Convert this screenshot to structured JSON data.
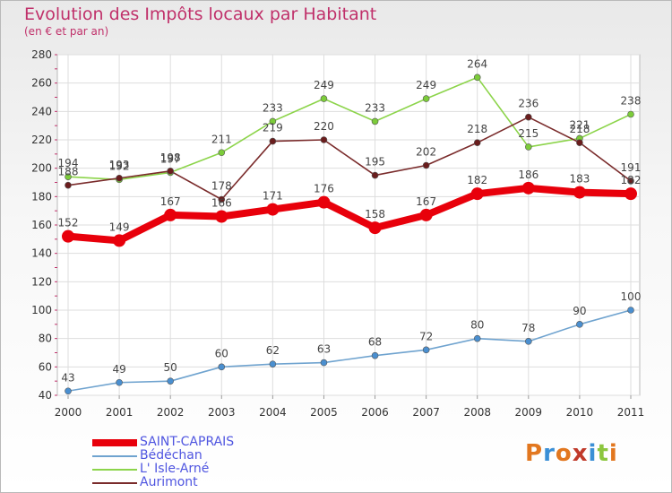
{
  "header": {
    "title": "Evolution des Impôts locaux par Habitant",
    "subtitle": "(en € et par an)"
  },
  "logo": {
    "text": "Proxiti",
    "colors": [
      "#e2771f",
      "#3a8fd6",
      "#e2771f",
      "#c03a2b",
      "#3a8fd6",
      "#8cc63f",
      "#e2771f"
    ]
  },
  "chart_data": {
    "type": "line",
    "x": [
      "2000",
      "2001",
      "2002",
      "2003",
      "2004",
      "2005",
      "2006",
      "2007",
      "2008",
      "2009",
      "2010",
      "2011"
    ],
    "ylim": [
      40,
      280
    ],
    "yticks": [
      40,
      60,
      80,
      100,
      120,
      140,
      160,
      180,
      200,
      220,
      240,
      260,
      280
    ],
    "grid": true,
    "legend_placement": "bottom-left",
    "series": [
      {
        "name": "SAINT-CAPRAIS",
        "color": "#e8000b",
        "legend_text_color": "#4f55e0",
        "emphasis": true,
        "values": [
          152,
          149,
          167,
          166,
          171,
          176,
          158,
          167,
          182,
          186,
          183,
          182
        ]
      },
      {
        "name": "Bédéchan",
        "color": "#6fa3cf",
        "marker_color": "#4a8fd0",
        "legend_text_color": "#4f55e0",
        "values": [
          43,
          49,
          50,
          60,
          62,
          63,
          68,
          72,
          80,
          78,
          90,
          100
        ]
      },
      {
        "name": "L' Isle-Arné",
        "color": "#8cd44a",
        "marker_color": "#7ccc3a",
        "legend_text_color": "#4f55e0",
        "values": [
          194,
          192,
          197,
          211,
          233,
          249,
          233,
          249,
          264,
          215,
          221,
          238
        ]
      },
      {
        "name": "Aurimont",
        "color": "#7a2b2b",
        "marker_color": "#6a1d1d",
        "legend_text_color": "#4f55e0",
        "values": [
          188,
          193,
          198,
          178,
          219,
          220,
          195,
          202,
          218,
          236,
          218,
          191
        ]
      }
    ]
  }
}
